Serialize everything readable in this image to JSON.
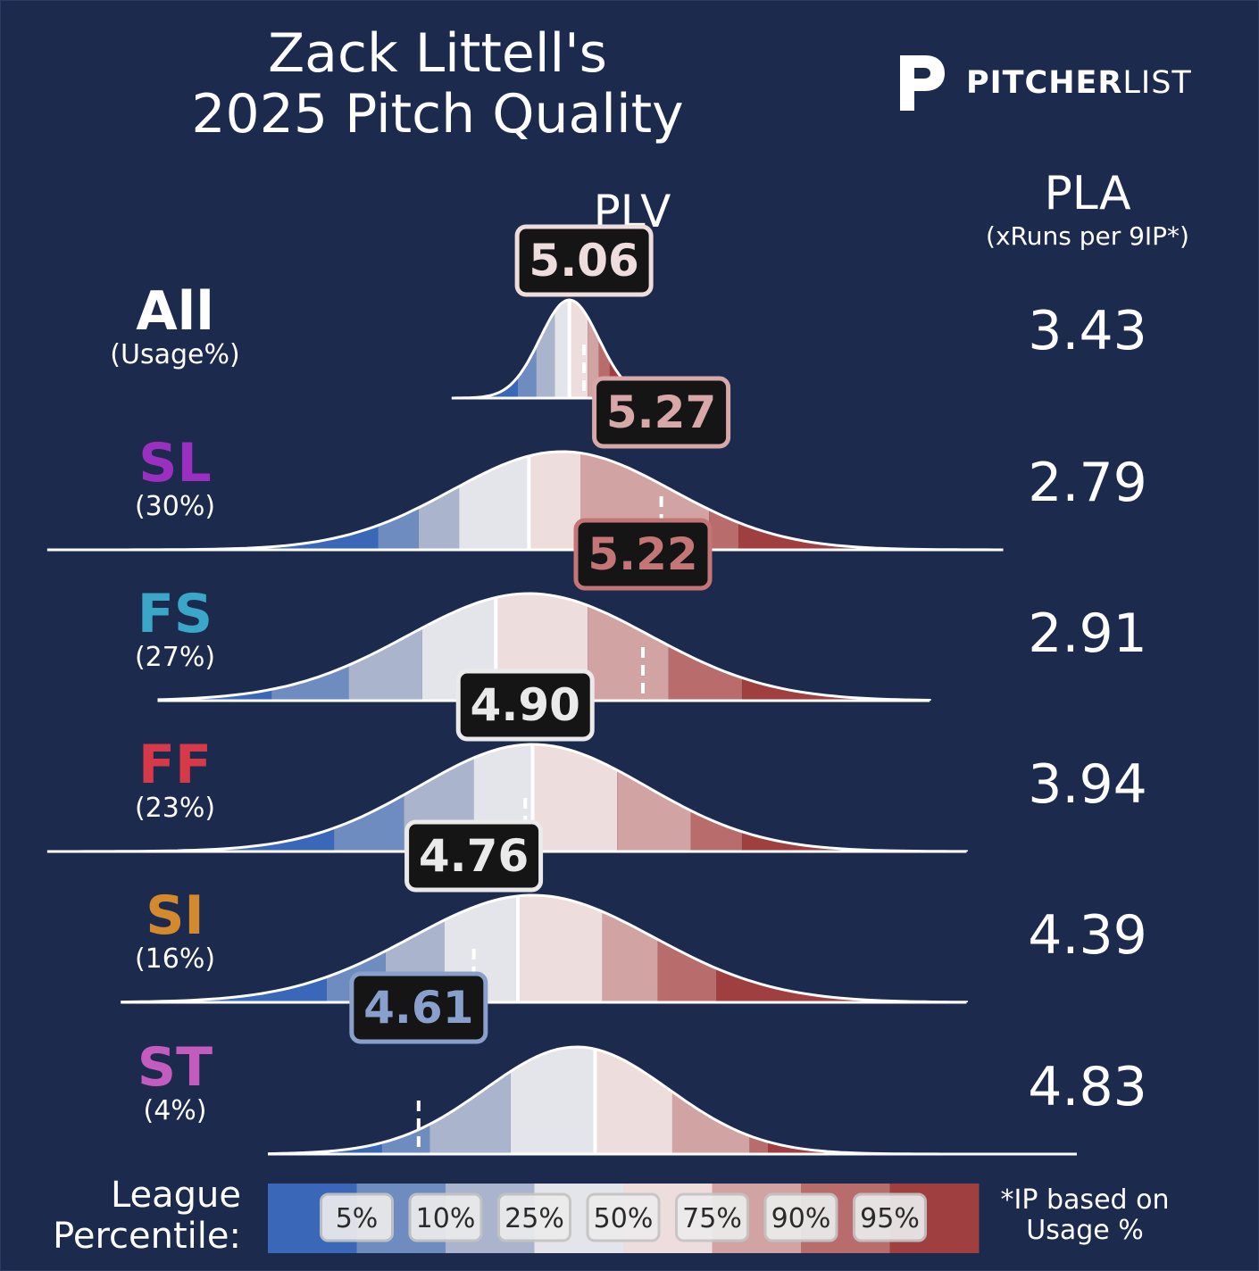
{
  "title_line1": "Zack Littell's",
  "title_line2": "2025 Pitch Quality",
  "brand": {
    "bold": "PITCHER",
    "light": "LIST",
    "icon": "pitcherlist-p-logo"
  },
  "headers": {
    "plv": "PLV",
    "pla": "PLA",
    "pla_sub": "(xRuns per 9IP*)"
  },
  "legend": {
    "label_line1": "League",
    "label_line2": "Percentile:",
    "percentiles": [
      "5%",
      "10%",
      "25%",
      "50%",
      "75%",
      "90%",
      "95%"
    ]
  },
  "footnote_line1": "*IP based on",
  "footnote_line2": "Usage %",
  "colors": {
    "background": "#1c2a4d",
    "band_colors": [
      "#3b67b8",
      "#6f8cc0",
      "#aab4cd",
      "#e4e5ea",
      "#eedddd",
      "#d2a3a3",
      "#b86c6c",
      "#9f3f3f"
    ]
  },
  "chart_data": {
    "type": "distribution",
    "metric": "PLV",
    "pitches": [
      {
        "code": "All",
        "usage": "(Usage%)",
        "code_color": "#ffffff",
        "plv": 5.06,
        "plv_label": "5.06",
        "pla": "3.43",
        "label_color": "#efdcdc",
        "mean": 5.02,
        "sd": 0.08,
        "range": [
          4.7,
          5.32
        ],
        "percentile_cuts": [
          4.88,
          4.93,
          4.98,
          5.02,
          5.07,
          5.1,
          5.13
        ]
      },
      {
        "code": "SL",
        "usage": "(30%)",
        "code_color": "#9b2fbf",
        "plv": 5.27,
        "plv_label": "5.27",
        "pla": "2.79",
        "label_color": "#d8a8a8",
        "mean": 5.0,
        "sd": 0.3,
        "range": [
          3.6,
          6.2
        ],
        "percentile_cuts": [
          4.5,
          4.61,
          4.72,
          4.91,
          5.05,
          5.4,
          5.48
        ]
      },
      {
        "code": "FS",
        "usage": "(27%)",
        "code_color": "#3aa6c8",
        "plv": 5.22,
        "plv_label": "5.22",
        "pla": "2.91",
        "label_color": "#c47676",
        "mean": 4.91,
        "sd": 0.33,
        "range": [
          3.9,
          6.0
        ],
        "percentile_cuts": [
          4.21,
          4.42,
          4.62,
          4.82,
          5.07,
          5.29,
          5.49
        ]
      },
      {
        "code": "FF",
        "usage": "(23%)",
        "code_color": "#d63a48",
        "plv": 4.9,
        "plv_label": "4.90",
        "pla": "3.94",
        "label_color": "#eaeaea",
        "mean": 4.92,
        "sd": 0.31,
        "range": [
          3.6,
          6.1
        ],
        "percentile_cuts": [
          4.38,
          4.57,
          4.76,
          4.92,
          5.15,
          5.35,
          5.49
        ]
      },
      {
        "code": "SI",
        "usage": "(16%)",
        "code_color": "#d4892c",
        "plv": 4.76,
        "plv_label": "4.76",
        "pla": "4.39",
        "label_color": "#eaeaea",
        "mean": 4.92,
        "sd": 0.33,
        "range": [
          3.8,
          6.1
        ],
        "percentile_cuts": [
          4.36,
          4.52,
          4.68,
          4.88,
          5.11,
          5.26,
          5.42
        ]
      },
      {
        "code": "ST",
        "usage": "(4%)",
        "code_color": "#c45cc0",
        "plv": 4.61,
        "plv_label": "4.61",
        "pla": "4.83",
        "label_color": "#8aa0cc",
        "mean": 5.04,
        "sd": 0.25,
        "range": [
          4.2,
          6.4
        ],
        "percentile_cuts": [
          4.51,
          4.64,
          4.86,
          5.09,
          5.3,
          5.51,
          5.56
        ]
      }
    ]
  }
}
